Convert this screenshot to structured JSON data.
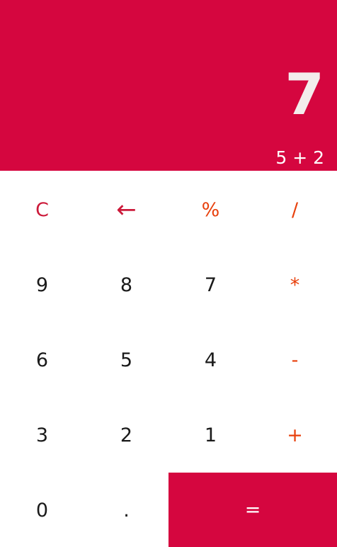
{
  "display": {
    "result": "7",
    "expression": "5 + 2"
  },
  "keys": {
    "clear": "C",
    "backspace": "←",
    "percent": "%",
    "divide": "/",
    "nine": "9",
    "eight": "8",
    "seven": "7",
    "multiply": "*",
    "six": "6",
    "five": "5",
    "four": "4",
    "subtract": "-",
    "three": "3",
    "two": "2",
    "one": "1",
    "add": "+",
    "zero": "0",
    "decimal": ".",
    "equals": "="
  },
  "colors": {
    "accent": "#d5063f",
    "function_key": "#cc1a3a",
    "operator_key": "#e8400c",
    "digit_key": "#1a1a1a"
  }
}
